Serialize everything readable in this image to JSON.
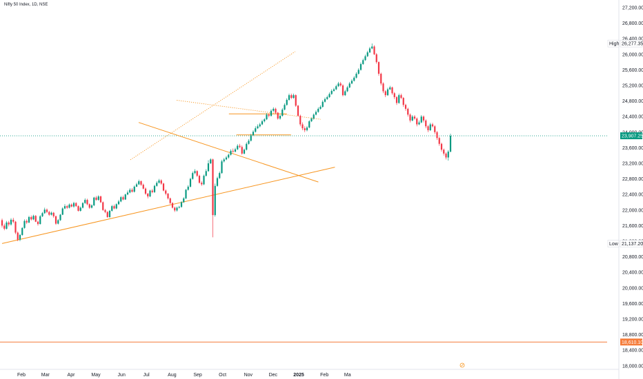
{
  "header": {
    "title": "Nifty 50 Index, 1D, NSE"
  },
  "colors": {
    "up": "#089981",
    "down": "#f23645",
    "trend": "#f7941d",
    "price_line": "#089981",
    "support_line": "#f57c3a",
    "axis": "#131722"
  },
  "price_scale": {
    "labels": [
      "27,200.00",
      "26,800.00",
      "26,400.00",
      "26,000.00",
      "25,600.00",
      "25,200.00",
      "24,800.00",
      "24,400.00",
      "24,000.00",
      "23,600.00",
      "23,200.00",
      "22,800.00",
      "22,400.00",
      "22,000.00",
      "21,600.00",
      "21,200.00",
      "20,800.00",
      "20,400.00",
      "20,000.00",
      "19,600.00",
      "19,200.00",
      "18,800.00",
      "18,400.00",
      "18,000.00"
    ],
    "high_label": "High",
    "high_value": "26,277.35",
    "low_label": "Low",
    "low_value": "21,137.20",
    "last_value": "23,907.25",
    "level_value": "18,610.10",
    "range": [
      17980,
      27360
    ]
  },
  "time_scale": {
    "labels": [
      "Feb",
      "Mar",
      "Apr",
      "May",
      "Jun",
      "Jul",
      "Aug",
      "Sep",
      "Oct",
      "Nov",
      "Dec",
      "2025",
      "Feb",
      "Ma"
    ]
  },
  "chart_data": {
    "type": "candlestick",
    "title": "Nifty 50 Index, 1D, NSE",
    "ylim": [
      17980,
      27360
    ],
    "high": 26277.35,
    "low": 21137.2,
    "last": 23907.25,
    "horizontal_level": 18610.1,
    "candles": [
      [
        21740,
        21600,
        21780,
        21550
      ],
      [
        21600,
        21520,
        21650,
        21480
      ],
      [
        21520,
        21680,
        21720,
        21500
      ],
      [
        21680,
        21630,
        21720,
        21580
      ],
      [
        21630,
        21750,
        21790,
        21600
      ],
      [
        21750,
        21700,
        21800,
        21660
      ],
      [
        21700,
        21420,
        21720,
        21380
      ],
      [
        21420,
        21240,
        21450,
        21200
      ],
      [
        21240,
        21360,
        21390,
        21200
      ],
      [
        21360,
        21540,
        21560,
        21340
      ],
      [
        21540,
        21720,
        21760,
        21520
      ],
      [
        21720,
        21680,
        21760,
        21640
      ],
      [
        21680,
        21820,
        21850,
        21660
      ],
      [
        21820,
        21760,
        21860,
        21730
      ],
      [
        21760,
        21850,
        21880,
        21740
      ],
      [
        21850,
        21700,
        21870,
        21690
      ],
      [
        21700,
        21640,
        21730,
        21600
      ],
      [
        21640,
        21840,
        21870,
        21630
      ],
      [
        21840,
        21920,
        21950,
        21820
      ],
      [
        21920,
        22010,
        22060,
        21900
      ],
      [
        22010,
        21950,
        22040,
        21920
      ],
      [
        21950,
        21880,
        21980,
        21850
      ],
      [
        21880,
        21930,
        21960,
        21860
      ],
      [
        21930,
        21840,
        21950,
        21800
      ],
      [
        21840,
        21650,
        21860,
        21620
      ],
      [
        21650,
        21740,
        21770,
        21630
      ],
      [
        21740,
        21880,
        21900,
        21720
      ],
      [
        21880,
        22040,
        22070,
        21870
      ],
      [
        22040,
        22100,
        22150,
        22020
      ],
      [
        22100,
        22060,
        22130,
        22030
      ],
      [
        22060,
        22140,
        22170,
        22040
      ],
      [
        22140,
        22090,
        22170,
        22070
      ],
      [
        22090,
        22180,
        22210,
        22060
      ],
      [
        22180,
        22100,
        22200,
        22080
      ],
      [
        22100,
        21980,
        22120,
        21960
      ],
      [
        21980,
        22060,
        22090,
        21960
      ],
      [
        22060,
        22180,
        22200,
        22040
      ],
      [
        22180,
        22260,
        22300,
        22160
      ],
      [
        22260,
        22150,
        22290,
        22120
      ],
      [
        22150,
        22060,
        22170,
        22030
      ],
      [
        22060,
        22120,
        22150,
        22040
      ],
      [
        22120,
        22320,
        22340,
        22100
      ],
      [
        22320,
        22260,
        22360,
        22240
      ],
      [
        22260,
        22350,
        22380,
        22240
      ],
      [
        22350,
        22200,
        22370,
        22180
      ],
      [
        22200,
        22000,
        22220,
        21980
      ],
      [
        22000,
        21950,
        22030,
        21920
      ],
      [
        21950,
        21820,
        21970,
        21800
      ],
      [
        21820,
        21980,
        22000,
        21800
      ],
      [
        21980,
        22100,
        22130,
        21960
      ],
      [
        22100,
        22040,
        22140,
        22020
      ],
      [
        22040,
        22150,
        22170,
        22020
      ],
      [
        22150,
        22220,
        22260,
        22130
      ],
      [
        22220,
        22330,
        22360,
        22200
      ],
      [
        22330,
        22270,
        22370,
        22250
      ],
      [
        22270,
        22400,
        22420,
        22260
      ],
      [
        22400,
        22450,
        22500,
        22380
      ],
      [
        22450,
        22520,
        22560,
        22430
      ],
      [
        22520,
        22470,
        22560,
        22450
      ],
      [
        22470,
        22600,
        22630,
        22450
      ],
      [
        22600,
        22660,
        22700,
        22590
      ],
      [
        22660,
        22740,
        22780,
        22640
      ],
      [
        22740,
        22650,
        22760,
        22620
      ],
      [
        22650,
        22550,
        22680,
        22530
      ],
      [
        22550,
        22420,
        22580,
        22390
      ],
      [
        22420,
        22350,
        22440,
        22300
      ],
      [
        22350,
        22500,
        22520,
        22330
      ],
      [
        22500,
        22460,
        22540,
        22430
      ],
      [
        22460,
        22620,
        22650,
        22440
      ],
      [
        22620,
        22700,
        22740,
        22600
      ],
      [
        22700,
        22760,
        22800,
        22680
      ],
      [
        22760,
        22680,
        22790,
        22650
      ],
      [
        22680,
        22500,
        22700,
        22480
      ],
      [
        22500,
        22420,
        22530,
        22380
      ],
      [
        22420,
        22300,
        22440,
        22270
      ],
      [
        22300,
        22180,
        22320,
        22150
      ],
      [
        22180,
        22060,
        22200,
        22040
      ],
      [
        22060,
        21990,
        22090,
        21950
      ],
      [
        21990,
        22060,
        22090,
        21960
      ],
      [
        22060,
        22080,
        22110,
        22040
      ],
      [
        22080,
        22200,
        22230,
        22060
      ],
      [
        22200,
        22300,
        22330,
        22180
      ],
      [
        22300,
        22520,
        22540,
        22280
      ],
      [
        22520,
        22600,
        22640,
        22500
      ],
      [
        22600,
        22800,
        22830,
        22580
      ],
      [
        22800,
        22950,
        22990,
        22780
      ],
      [
        22950,
        23000,
        23050,
        22920
      ],
      [
        23000,
        22880,
        23020,
        22850
      ],
      [
        22880,
        22700,
        22910,
        22680
      ],
      [
        22700,
        22660,
        22740,
        22620
      ],
      [
        22660,
        22880,
        22910,
        22640
      ],
      [
        22880,
        23000,
        23050,
        22860
      ],
      [
        23000,
        23200,
        23280,
        22980
      ],
      [
        23200,
        23300,
        23330,
        23180
      ],
      [
        23300,
        21870,
        23320,
        21300
      ],
      [
        21870,
        22620,
        22680,
        21830
      ],
      [
        22620,
        22820,
        22860,
        22600
      ],
      [
        22820,
        22950,
        22990,
        22800
      ],
      [
        22950,
        23250,
        23290,
        22930
      ],
      [
        23250,
        23300,
        23340,
        23220
      ],
      [
        23300,
        23350,
        23390,
        23280
      ],
      [
        23350,
        23420,
        23450,
        23320
      ],
      [
        23420,
        23520,
        23560,
        23400
      ],
      [
        23520,
        23500,
        23580,
        23470
      ],
      [
        23500,
        23560,
        23600,
        23480
      ],
      [
        23560,
        23650,
        23690,
        23540
      ],
      [
        23650,
        23620,
        23700,
        23590
      ],
      [
        23620,
        23450,
        23660,
        23420
      ],
      [
        23450,
        23550,
        23580,
        23430
      ],
      [
        23550,
        23700,
        23740,
        23530
      ],
      [
        23700,
        23780,
        23820,
        23680
      ],
      [
        23780,
        23920,
        23960,
        23760
      ],
      [
        23920,
        24010,
        24050,
        23900
      ],
      [
        24010,
        24100,
        24150,
        23990
      ],
      [
        24100,
        24150,
        24200,
        24080
      ],
      [
        24150,
        24200,
        24240,
        24120
      ],
      [
        24200,
        24280,
        24320,
        24180
      ],
      [
        24280,
        24330,
        24360,
        24250
      ],
      [
        24330,
        24450,
        24490,
        24310
      ],
      [
        24450,
        24420,
        24480,
        24380
      ],
      [
        24420,
        24550,
        24590,
        24400
      ],
      [
        24550,
        24600,
        24640,
        24520
      ],
      [
        24600,
        24500,
        24630,
        24470
      ],
      [
        24500,
        24350,
        24520,
        24320
      ],
      [
        24350,
        24420,
        24450,
        24320
      ],
      [
        24420,
        24580,
        24620,
        24400
      ],
      [
        24580,
        24700,
        24740,
        24560
      ],
      [
        24700,
        24830,
        24870,
        24680
      ],
      [
        24830,
        24950,
        24990,
        24810
      ],
      [
        24950,
        24880,
        24990,
        24850
      ],
      [
        24880,
        24950,
        24990,
        24860
      ],
      [
        24950,
        24680,
        24970,
        24650
      ],
      [
        24680,
        24420,
        24700,
        24400
      ],
      [
        24420,
        24200,
        24450,
        24150
      ],
      [
        24200,
        24100,
        24250,
        24050
      ],
      [
        24100,
        24050,
        24150,
        24000
      ],
      [
        24050,
        24120,
        24160,
        24020
      ],
      [
        24120,
        24280,
        24310,
        24100
      ],
      [
        24280,
        24350,
        24380,
        24260
      ],
      [
        24350,
        24450,
        24480,
        24320
      ],
      [
        24450,
        24520,
        24560,
        24430
      ],
      [
        24520,
        24600,
        24640,
        24500
      ],
      [
        24600,
        24650,
        24690,
        24580
      ],
      [
        24650,
        24780,
        24820,
        24630
      ],
      [
        24780,
        24850,
        24890,
        24760
      ],
      [
        24850,
        24900,
        24940,
        24830
      ],
      [
        24900,
        24980,
        25020,
        24880
      ],
      [
        24980,
        25060,
        25100,
        24960
      ],
      [
        25060,
        25100,
        25140,
        25040
      ],
      [
        25100,
        25180,
        25220,
        25080
      ],
      [
        25180,
        25250,
        25290,
        25160
      ],
      [
        25250,
        25200,
        25290,
        25170
      ],
      [
        25200,
        24950,
        25230,
        24920
      ],
      [
        24950,
        25050,
        25090,
        24930
      ],
      [
        25050,
        25150,
        25190,
        25030
      ],
      [
        25150,
        25250,
        25290,
        25130
      ],
      [
        25250,
        25320,
        25360,
        25230
      ],
      [
        25320,
        25400,
        25440,
        25300
      ],
      [
        25400,
        25500,
        25540,
        25380
      ],
      [
        25500,
        25600,
        25640,
        25480
      ],
      [
        25600,
        25750,
        25790,
        25580
      ],
      [
        25750,
        25850,
        25890,
        25730
      ],
      [
        25850,
        25950,
        25990,
        25830
      ],
      [
        25950,
        26050,
        26090,
        25930
      ],
      [
        26050,
        26150,
        26190,
        26030
      ],
      [
        26150,
        26200,
        26277,
        26130
      ],
      [
        26200,
        26000,
        26230,
        25980
      ],
      [
        26000,
        25800,
        26030,
        25760
      ],
      [
        25800,
        25500,
        25820,
        25450
      ],
      [
        25500,
        25250,
        25530,
        25200
      ],
      [
        25250,
        25050,
        25280,
        25000
      ],
      [
        25050,
        24950,
        25080,
        24900
      ],
      [
        24950,
        25100,
        25140,
        24930
      ],
      [
        25100,
        25150,
        25190,
        25080
      ],
      [
        25150,
        25000,
        25170,
        24960
      ],
      [
        25000,
        24900,
        25030,
        24850
      ],
      [
        24900,
        24750,
        24930,
        24700
      ],
      [
        24750,
        24950,
        24990,
        24730
      ],
      [
        24950,
        24880,
        24990,
        24850
      ],
      [
        24880,
        24700,
        24900,
        24650
      ],
      [
        24700,
        24600,
        24730,
        24550
      ],
      [
        24600,
        24450,
        24630,
        24400
      ],
      [
        24450,
        24300,
        24480,
        24250
      ],
      [
        24300,
        24400,
        24440,
        24280
      ],
      [
        24400,
        24350,
        24440,
        24320
      ],
      [
        24350,
        24200,
        24380,
        24150
      ],
      [
        24200,
        24250,
        24300,
        24180
      ],
      [
        24250,
        24400,
        24440,
        24230
      ],
      [
        24400,
        24300,
        24430,
        24250
      ],
      [
        24300,
        24150,
        24330,
        24100
      ],
      [
        24150,
        24050,
        24180,
        24000
      ],
      [
        24050,
        24200,
        24240,
        24030
      ],
      [
        24200,
        24150,
        24240,
        24120
      ],
      [
        24150,
        24000,
        24180,
        23950
      ],
      [
        24000,
        23850,
        24030,
        23800
      ],
      [
        23850,
        23700,
        23880,
        23650
      ],
      [
        23700,
        23550,
        23730,
        23500
      ],
      [
        23550,
        23450,
        23580,
        23400
      ],
      [
        23450,
        23350,
        23480,
        23300
      ],
      [
        23350,
        23500,
        23540,
        23270
      ],
      [
        23500,
        23907,
        23960,
        23480
      ]
    ],
    "trendlines": [
      {
        "style": "solid",
        "from": [
          "2024-01-22",
          21140
        ],
        "to": [
          "2025-02-27",
          23100
        ]
      },
      {
        "style": "solid",
        "from": [
          "2024-07-05",
          24250
        ],
        "to": [
          "2025-02-07",
          22720
        ]
      },
      {
        "style": "dotted",
        "from": [
          "2024-06-25",
          23290
        ],
        "to": [
          "2025-01-10",
          26070
        ]
      },
      {
        "style": "dotted",
        "from": [
          "2024-08-20",
          24820
        ],
        "to": [
          "2025-02-10",
          24330
        ]
      },
      {
        "style": "solid",
        "from": [
          "2024-10-22",
          24470
        ],
        "to": [
          "2024-12-31",
          24470
        ]
      },
      {
        "style": "solid",
        "from": [
          "2024-10-31",
          23930
        ],
        "to": [
          "2025-01-05",
          23930
        ]
      }
    ]
  }
}
